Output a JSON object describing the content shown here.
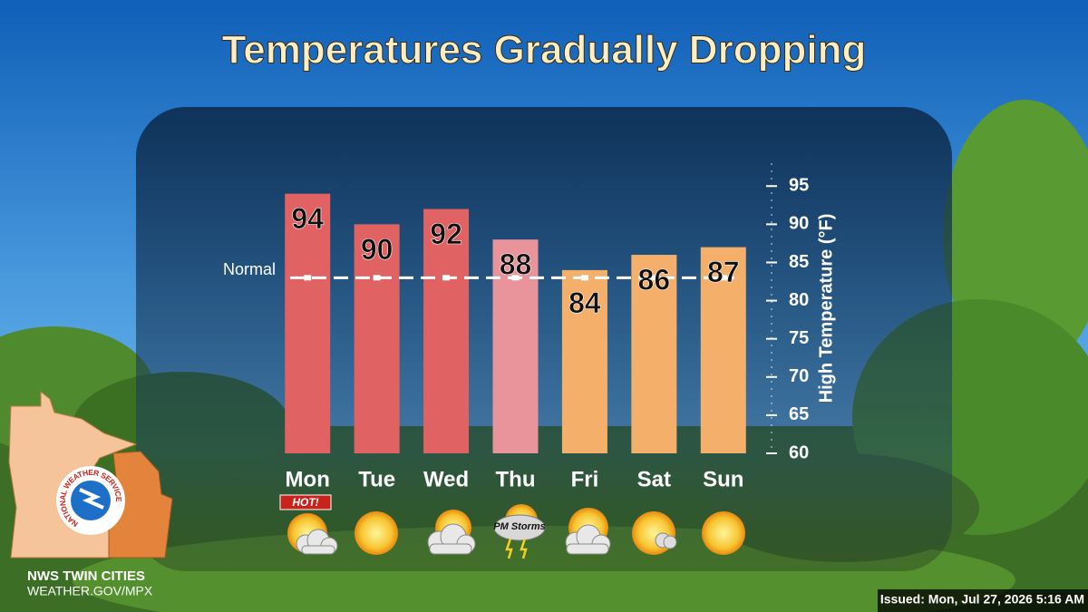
{
  "chart_data": {
    "type": "bar",
    "title": "Temperatures Gradually Dropping",
    "categories": [
      "Mon",
      "Tue",
      "Wed",
      "Thu",
      "Fri",
      "Sat",
      "Sun"
    ],
    "values": [
      94,
      90,
      92,
      88,
      84,
      86,
      87
    ],
    "colors": [
      "#e06262",
      "#e06262",
      "#e06262",
      "#e8949a",
      "#f4b06a",
      "#f4b06a",
      "#f4b06a"
    ],
    "ylim": [
      60,
      98
    ],
    "yticks": [
      60,
      65,
      70,
      75,
      80,
      85,
      90,
      95
    ],
    "y_label": "High Temperature (°F)",
    "normal": {
      "label": "Normal",
      "value": 83
    },
    "annotations": {
      "hot": "HOT!",
      "storms": "PM Storms"
    }
  },
  "logo": {
    "text": "NATIONAL WEATHER SERVICE"
  },
  "office": "NWS TWIN CITIES",
  "url": "WEATHER.GOV/MPX",
  "issued": "Issued: Mon, Jul 27, 2026 5:16 AM"
}
